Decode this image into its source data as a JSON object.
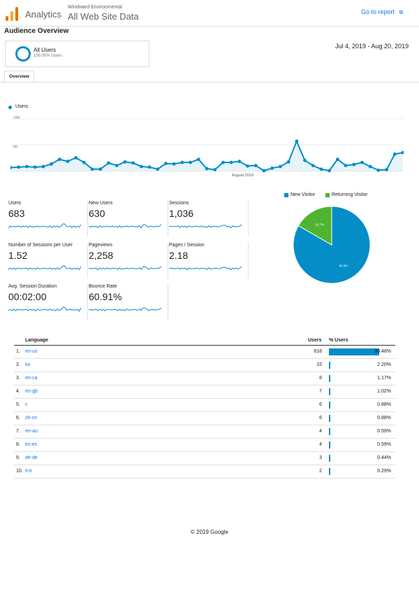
{
  "header": {
    "app_name": "Analytics",
    "account": "Windward Environmental",
    "property": "All Web Site Data",
    "go_to_report": "Go to report"
  },
  "page_title": "Audience Overview",
  "segment": {
    "name": "All Users",
    "sub": "100.00% Users"
  },
  "date_range": "Jul 4, 2019 - Aug 20, 2019",
  "tab": "Overview",
  "colors": {
    "accent": "#058dc7",
    "returning": "#50b432",
    "link": "#1a73e8"
  },
  "chart_data": [
    {
      "type": "line",
      "series": [
        {
          "name": "Users",
          "values": [
            6,
            7,
            8,
            7,
            8,
            13,
            22,
            18,
            25,
            16,
            3,
            3,
            15,
            10,
            17,
            15,
            8,
            7,
            3,
            14,
            13,
            16,
            16,
            22,
            4,
            2,
            16,
            16,
            18,
            9,
            10,
            0,
            5,
            8,
            17,
            57,
            20,
            10,
            3,
            0,
            22,
            10,
            12,
            16,
            8,
            1,
            2,
            32,
            35
          ]
        }
      ],
      "yticks": [
        100,
        50
      ],
      "xlabel_tick": "August 2019",
      "ylim": [
        0,
        100
      ],
      "grid": true
    },
    {
      "type": "pie",
      "categories": [
        "New Visitor",
        "Returning Visitor"
      ],
      "values": [
        83.3,
        16.7
      ],
      "labels": [
        "83.3%",
        "16.7%"
      ],
      "legend": "top"
    }
  ],
  "metrics": [
    {
      "label": "Users",
      "value": "683"
    },
    {
      "label": "New Users",
      "value": "630"
    },
    {
      "label": "Sessions",
      "value": "1,036"
    },
    {
      "label": "Number of Sessions per User",
      "value": "1.52"
    },
    {
      "label": "Pageviews",
      "value": "2,258"
    },
    {
      "label": "Pages / Session",
      "value": "2.18"
    },
    {
      "label": "Avg. Session Duration",
      "value": "00:02:00"
    },
    {
      "label": "Bounce Rate",
      "value": "60.91%"
    }
  ],
  "table": {
    "headers": {
      "language": "Language",
      "users": "Users",
      "pct": "% Users"
    },
    "rows": [
      {
        "idx": "1.",
        "lang": "en-us",
        "users": "618",
        "pct": "90.48%",
        "share": 0.9048
      },
      {
        "idx": "2.",
        "lang": "ko",
        "users": "15",
        "pct": "2.20%",
        "share": 0.022
      },
      {
        "idx": "3.",
        "lang": "en-ca",
        "users": "8",
        "pct": "1.17%",
        "share": 0.0117
      },
      {
        "idx": "4.",
        "lang": "en-gb",
        "users": "7",
        "pct": "1.02%",
        "share": 0.0102
      },
      {
        "idx": "5.",
        "lang": "c",
        "users": "6",
        "pct": "0.88%",
        "share": 0.0088
      },
      {
        "idx": "6.",
        "lang": "zh-cn",
        "users": "6",
        "pct": "0.88%",
        "share": 0.0088
      },
      {
        "idx": "7.",
        "lang": "en-au",
        "users": "4",
        "pct": "0.59%",
        "share": 0.0059
      },
      {
        "idx": "8.",
        "lang": "es-es",
        "users": "4",
        "pct": "0.59%",
        "share": 0.0059
      },
      {
        "idx": "9.",
        "lang": "de-de",
        "users": "3",
        "pct": "0.44%",
        "share": 0.0044
      },
      {
        "idx": "10.",
        "lang": "it-it",
        "users": "2",
        "pct": "0.29%",
        "share": 0.0029
      }
    ]
  },
  "footer": "© 2019 Google"
}
